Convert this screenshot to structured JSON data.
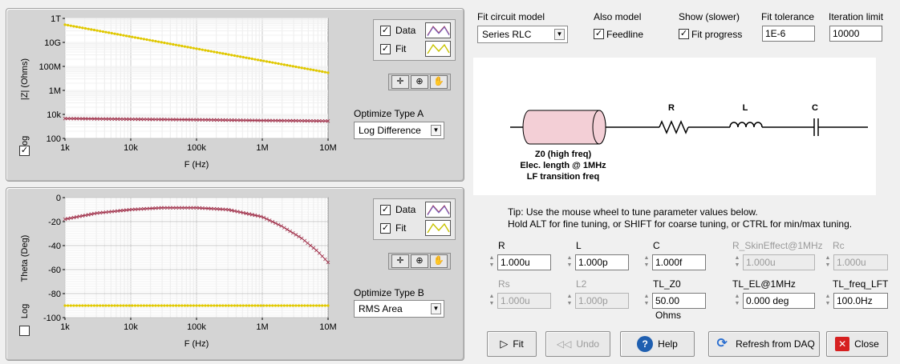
{
  "top_plot": {
    "ylabel": "|Z| (Ohms)",
    "xlabel": "F (Hz)",
    "y_ticks": [
      "1T",
      "10G",
      "100M",
      "1M",
      "10k",
      "100"
    ],
    "x_ticks": [
      "1k",
      "10k",
      "100k",
      "1M",
      "10M"
    ],
    "log_label": "Log",
    "log_checked": true,
    "legend": {
      "data": "Data",
      "fit": "Fit"
    },
    "optimize_label": "Optimize Type A",
    "optimize_value": "Log Difference"
  },
  "bottom_plot": {
    "ylabel": "Theta (Deg)",
    "xlabel": "F (Hz)",
    "y_ticks": [
      "0",
      "-20",
      "-40",
      "-60",
      "-80",
      "-100"
    ],
    "x_ticks": [
      "1k",
      "10k",
      "100k",
      "1M",
      "10M"
    ],
    "log_label": "Log",
    "log_checked": false,
    "legend": {
      "data": "Data",
      "fit": "Fit"
    },
    "optimize_label": "Optimize Type B",
    "optimize_value": "RMS Area"
  },
  "chart_data": [
    {
      "type": "scatter",
      "x_scale": "log",
      "y_scale": "log",
      "xlim": [
        1000,
        10000000
      ],
      "ylim": [
        100,
        1000000000000
      ],
      "series": [
        {
          "name": "Data",
          "color": "#a0304a",
          "x": [
            1000,
            10000,
            100000,
            1000000,
            10000000
          ],
          "y": [
            4500,
            4000,
            3600,
            3100,
            2800
          ]
        },
        {
          "name": "Fit",
          "color": "#e0c800",
          "x": [
            1000,
            10000,
            100000,
            1000000,
            10000000
          ],
          "y": [
            300000000000,
            30000000000,
            3000000000,
            300000000,
            30000000
          ]
        }
      ]
    },
    {
      "type": "scatter",
      "x_scale": "log",
      "y_scale": "linear",
      "xlim": [
        1000,
        10000000
      ],
      "ylim": [
        -100,
        0
      ],
      "series": [
        {
          "name": "Data",
          "color": "#a0304a",
          "x": [
            1000,
            3000,
            10000,
            30000,
            100000,
            300000,
            1000000,
            2000000,
            4000000,
            7000000,
            10000000
          ],
          "y": [
            -18,
            -13,
            -10,
            -8.5,
            -8.5,
            -10,
            -16,
            -24,
            -34,
            -45,
            -54
          ]
        },
        {
          "name": "Fit",
          "color": "#e0c800",
          "x": [
            1000,
            10000,
            100000,
            1000000,
            10000000
          ],
          "y": [
            -90,
            -90,
            -90,
            -90,
            -90
          ]
        }
      ]
    }
  ],
  "controls": {
    "fit_model_label": "Fit circuit model",
    "fit_model_value": "Series RLC",
    "also_model_label": "Also model",
    "feedline_label": "Feedline",
    "feedline_checked": true,
    "show_label": "Show (slower)",
    "fit_progress_label": "Fit progress",
    "fit_progress_checked": true,
    "tolerance_label": "Fit tolerance",
    "tolerance_value": "1E-6",
    "iteration_label": "Iteration limit",
    "iteration_value": "10000"
  },
  "diagram": {
    "r": "R",
    "l": "L",
    "c": "C",
    "tl_line1": "Z0 (high freq)",
    "tl_line2": "Elec. length @ 1MHz",
    "tl_line3": "LF transition freq"
  },
  "tip": {
    "line1": "Tip: Use the mouse wheel to tune parameter values below.",
    "line2": "Hold ALT for fine tuning, or SHIFT for coarse tuning, or CTRL for min/max tuning."
  },
  "params": [
    {
      "label": "R",
      "value": "1.000u",
      "enabled": true
    },
    {
      "label": "L",
      "value": "1.000p",
      "enabled": true
    },
    {
      "label": "C",
      "value": "1.000f",
      "enabled": true
    },
    {
      "label": "R_SkinEffect@1MHz",
      "value": "1.000u",
      "enabled": false
    },
    {
      "label": "Rc",
      "value": "1.000u",
      "enabled": false
    },
    {
      "label": "Rs",
      "value": "1.000u",
      "enabled": false
    },
    {
      "label": "L2",
      "value": "1.000p",
      "enabled": false
    },
    {
      "label": "TL_Z0",
      "value": "50.00 Ohms",
      "enabled": true
    },
    {
      "label": "TL_EL@1MHz",
      "value": "0.000 deg",
      "enabled": true
    },
    {
      "label": "TL_freq_LFT",
      "value": "100.0Hz",
      "enabled": true
    }
  ],
  "buttons": {
    "fit": "Fit",
    "undo": "Undo",
    "help": "Help",
    "refresh": "Refresh from DAQ",
    "close": "Close"
  },
  "colors": {
    "data": "#a0304a",
    "fit": "#e0c800",
    "close_icon": "#d62020",
    "help_icon": "#1f5fb0"
  }
}
